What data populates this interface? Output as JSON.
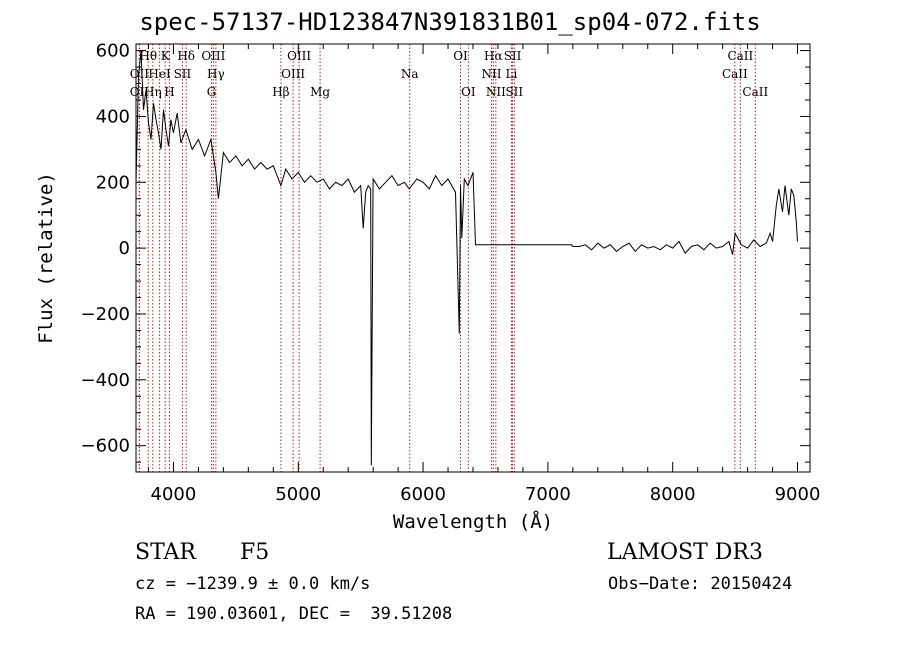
{
  "chart_data": {
    "type": "line",
    "title": "spec-57137-HD123847N391831B01_sp04-072.fits",
    "xlabel": "Wavelength (Å)",
    "ylabel": "Flux (relative)",
    "xlim": [
      3700,
      9100
    ],
    "ylim": [
      -680,
      620
    ],
    "xticks": [
      4000,
      5000,
      6000,
      7000,
      8000,
      9000
    ],
    "yticks": [
      -600,
      -400,
      -200,
      0,
      200,
      400,
      600
    ],
    "series": [
      {
        "name": "flux",
        "x": [
          3700,
          3720,
          3740,
          3760,
          3780,
          3800,
          3820,
          3840,
          3860,
          3880,
          3900,
          3920,
          3940,
          3960,
          3980,
          4000,
          4030,
          4060,
          4100,
          4150,
          4200,
          4250,
          4300,
          4340,
          4360,
          4400,
          4450,
          4500,
          4550,
          4600,
          4650,
          4700,
          4750,
          4800,
          4861,
          4900,
          4950,
          5000,
          5050,
          5100,
          5150,
          5200,
          5250,
          5300,
          5350,
          5400,
          5450,
          5500,
          5520,
          5540,
          5560,
          5580,
          5585,
          5600,
          5650,
          5700,
          5750,
          5800,
          5850,
          5890,
          5950,
          6000,
          6050,
          6100,
          6150,
          6200,
          6260,
          6290,
          6300,
          6310,
          6330,
          6360,
          6400,
          6420,
          6500,
          6600,
          6700,
          6800,
          6900,
          7000,
          7100,
          7190,
          7200,
          7250,
          7300,
          7350,
          7400,
          7450,
          7500,
          7550,
          7600,
          7650,
          7700,
          7750,
          7800,
          7850,
          7900,
          7950,
          8000,
          8050,
          8100,
          8150,
          8200,
          8250,
          8300,
          8350,
          8400,
          8450,
          8480,
          8500,
          8550,
          8600,
          8650,
          8700,
          8750,
          8780,
          8800,
          8830,
          8850,
          8880,
          8900,
          8930,
          8950,
          8970,
          8990,
          9000
        ],
        "y": [
          200,
          520,
          600,
          420,
          480,
          380,
          330,
          440,
          390,
          350,
          300,
          420,
          360,
          310,
          390,
          350,
          410,
          320,
          360,
          300,
          330,
          280,
          330,
          230,
          150,
          290,
          260,
          280,
          250,
          270,
          240,
          260,
          240,
          250,
          190,
          240,
          210,
          230,
          200,
          220,
          200,
          210,
          180,
          200,
          190,
          210,
          170,
          190,
          60,
          170,
          190,
          180,
          -660,
          210,
          180,
          200,
          220,
          190,
          200,
          180,
          210,
          200,
          180,
          220,
          190,
          210,
          170,
          -260,
          190,
          30,
          210,
          190,
          230,
          10,
          10,
          10,
          10,
          10,
          10,
          10,
          10,
          10,
          5,
          5,
          10,
          -5,
          15,
          0,
          10,
          -10,
          5,
          15,
          -10,
          10,
          0,
          5,
          -5,
          10,
          0,
          20,
          -15,
          5,
          10,
          -5,
          15,
          0,
          5,
          20,
          -20,
          45,
          10,
          0,
          25,
          5,
          15,
          45,
          20,
          130,
          180,
          110,
          190,
          100,
          180,
          160,
          80,
          20
        ]
      }
    ],
    "line_markers": [
      {
        "name": "OII",
        "wl": 3727,
        "row": 1
      },
      {
        "name": "OII",
        "wl": 3727,
        "row": 2
      },
      {
        "name": "Hθ",
        "wl": 3798,
        "row": 0
      },
      {
        "name": "HeI",
        "wl": 3889,
        "row": 1
      },
      {
        "name": "Hη",
        "wl": 3835,
        "row": 2
      },
      {
        "name": "K",
        "wl": 3934,
        "row": 0
      },
      {
        "name": "H",
        "wl": 3968,
        "row": 2
      },
      {
        "name": "SII",
        "wl": 4072,
        "row": 1
      },
      {
        "name": "Hδ",
        "wl": 4102,
        "row": 0
      },
      {
        "name": "OIII",
        "wl": 4320,
        "row": 0
      },
      {
        "name": "Hγ",
        "wl": 4340,
        "row": 1
      },
      {
        "name": "G",
        "wl": 4305,
        "row": 2
      },
      {
        "name": "Hβ",
        "wl": 4861,
        "row": 2
      },
      {
        "name": "OIII",
        "wl": 4959,
        "row": 1
      },
      {
        "name": "OIII",
        "wl": 5007,
        "row": 0
      },
      {
        "name": "Mg",
        "wl": 5175,
        "row": 2
      },
      {
        "name": "Na",
        "wl": 5893,
        "row": 1
      },
      {
        "name": "OI",
        "wl": 6300,
        "row": 0
      },
      {
        "name": "OI",
        "wl": 6363,
        "row": 2
      },
      {
        "name": "Hα",
        "wl": 6563,
        "row": 0
      },
      {
        "name": "NII",
        "wl": 6548,
        "row": 1
      },
      {
        "name": "NII",
        "wl": 6583,
        "row": 2
      },
      {
        "name": "SII",
        "wl": 6717,
        "row": 0
      },
      {
        "name": "Li",
        "wl": 6708,
        "row": 1
      },
      {
        "name": "SII",
        "wl": 6731,
        "row": 2
      },
      {
        "name": "CaII",
        "wl": 8498,
        "row": 1
      },
      {
        "name": "CaII",
        "wl": 8542,
        "row": 0
      },
      {
        "name": "CaII",
        "wl": 8662,
        "row": 2
      }
    ]
  },
  "info": {
    "object_class": "STAR",
    "subclass": "F5",
    "survey": "LAMOST DR3",
    "redshift": "cz = −1239.9 ± 0.0 km/s",
    "obs_date": "Obs−Date: 20150424",
    "coords": "RA = 190.03601, DEC =  39.51208"
  },
  "colors": {
    "marker_line": "#b22222",
    "spectrum": "#000000"
  }
}
